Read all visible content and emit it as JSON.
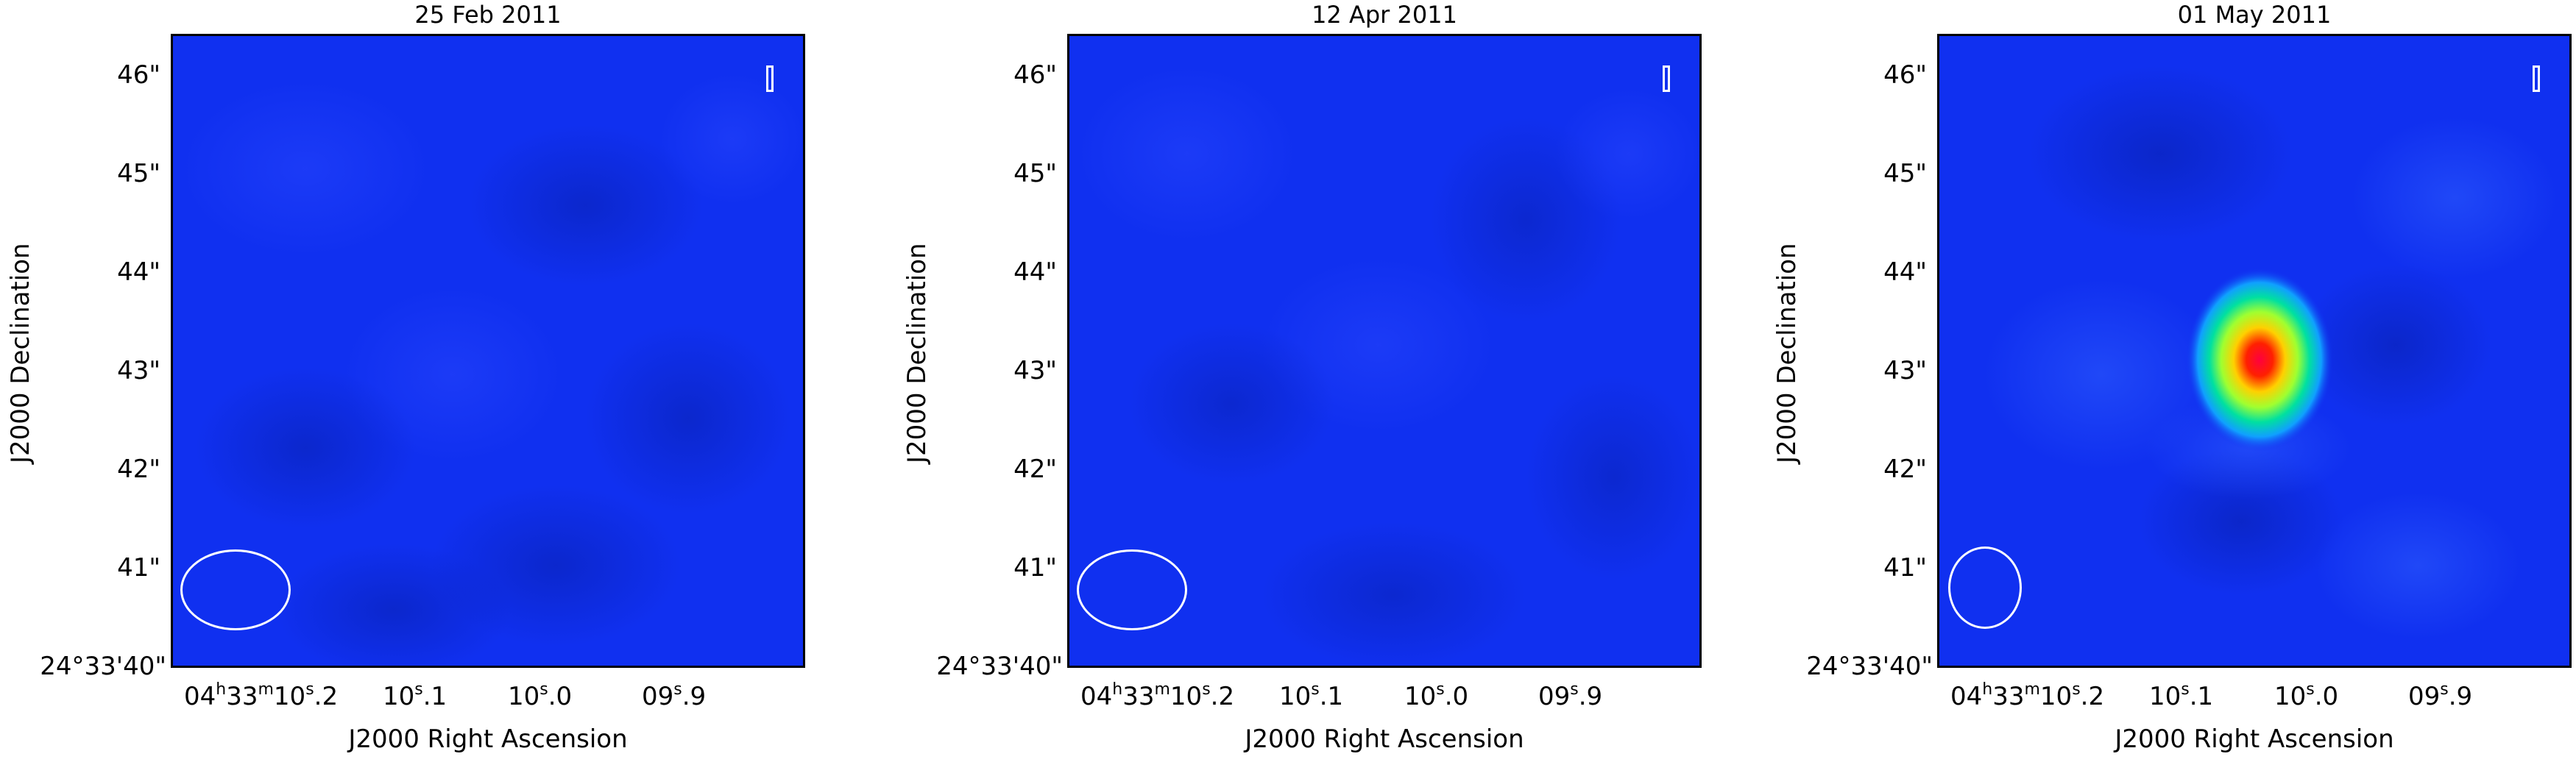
{
  "panels": [
    {
      "title": "25 Feb 2011",
      "ylabel": "J2000 Declination",
      "xlabel": "J2000 Right Ascension",
      "yticks": [
        "46\"",
        "45\"",
        "44\"",
        "43\"",
        "42\"",
        "41\""
      ],
      "yorigin": "24°33'40\"",
      "xticks": [
        "04h33m10s.2",
        "10s.1",
        "10s.0",
        "09s.9"
      ]
    },
    {
      "title": "12 Apr 2011",
      "ylabel": "J2000 Declination",
      "xlabel": "J2000 Right Ascension",
      "yticks": [
        "46\"",
        "45\"",
        "44\"",
        "43\"",
        "42\"",
        "41\""
      ],
      "yorigin": "24°33'40\"",
      "xticks": [
        "04h33m10s.2",
        "10s.1",
        "10s.0",
        "09s.9"
      ]
    },
    {
      "title": "01 May 2011",
      "ylabel": "J2000 Declination",
      "xlabel": "J2000 Right Ascension",
      "yticks": [
        "46\"",
        "45\"",
        "44\"",
        "43\"",
        "42\"",
        "41\""
      ],
      "yorigin": "24°33'40\"",
      "xticks": [
        "04h33m10s.2",
        "10s.1",
        "10s.0",
        "09s.9"
      ]
    }
  ],
  "colors": {
    "background": "#1030f0",
    "source_core": "#ff0000",
    "source_mid": "#ffff00",
    "source_outer": "#00ff66"
  }
}
